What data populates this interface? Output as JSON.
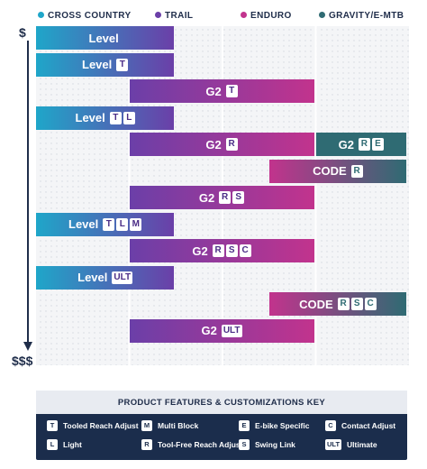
{
  "chart_data": {
    "type": "bar",
    "subtype": "range-gantt",
    "title": "",
    "x_categories": [
      {
        "name": "CROSS COUNTRY",
        "color": "#1fa6c9"
      },
      {
        "name": "TRAIL",
        "color": "#6b3fa8"
      },
      {
        "name": "ENDURO",
        "color": "#c2338d"
      },
      {
        "name": "GRAVITY/E-MTB",
        "color": "#2f6b73"
      }
    ],
    "y_axis": {
      "top_label": "$",
      "bottom_label": "$$$",
      "direction": "increasing price downward"
    },
    "grid": true,
    "bars": [
      {
        "name": "Level",
        "badges": [],
        "start": 0,
        "end": 1.5,
        "row": 0,
        "gradient": [
          "#1fa6c9",
          "#6b3fa8"
        ]
      },
      {
        "name": "Level",
        "badges": [
          "T"
        ],
        "start": 0,
        "end": 1.5,
        "row": 1,
        "gradient": [
          "#1fa6c9",
          "#6b3fa8"
        ]
      },
      {
        "name": "G2",
        "badges": [
          "T"
        ],
        "start": 1,
        "end": 3,
        "row": 2,
        "gradient": [
          "#6b3fa8",
          "#c2338d"
        ]
      },
      {
        "name": "Level",
        "badges": [
          "T",
          "L"
        ],
        "start": 0,
        "end": 1.5,
        "row": 3,
        "gradient": [
          "#1fa6c9",
          "#6b3fa8"
        ]
      },
      {
        "name": "G2",
        "badges": [
          "R"
        ],
        "start": 1,
        "end": 3,
        "row": 4,
        "gradient": [
          "#6b3fa8",
          "#c2338d"
        ]
      },
      {
        "name": "G2",
        "badges": [
          "R",
          "E"
        ],
        "start": 3,
        "end": 4,
        "row": 4,
        "gradient": [
          "#2f6b73",
          "#2f6b73"
        ]
      },
      {
        "name": "CODE",
        "badges": [
          "R"
        ],
        "start": 2.5,
        "end": 4,
        "row": 5,
        "gradient": [
          "#c2338d",
          "#2f6b73"
        ]
      },
      {
        "name": "G2",
        "badges": [
          "R",
          "S"
        ],
        "start": 1,
        "end": 3,
        "row": 6,
        "gradient": [
          "#6b3fa8",
          "#c2338d"
        ]
      },
      {
        "name": "Level",
        "badges": [
          "T",
          "L",
          "M"
        ],
        "start": 0,
        "end": 1.5,
        "row": 7,
        "gradient": [
          "#1fa6c9",
          "#6b3fa8"
        ]
      },
      {
        "name": "G2",
        "badges": [
          "R",
          "S",
          "C"
        ],
        "start": 1,
        "end": 3,
        "row": 8,
        "gradient": [
          "#6b3fa8",
          "#c2338d"
        ]
      },
      {
        "name": "Level",
        "badges": [
          "ULT"
        ],
        "start": 0,
        "end": 1.5,
        "row": 9,
        "gradient": [
          "#1fa6c9",
          "#6b3fa8"
        ]
      },
      {
        "name": "CODE",
        "badges": [
          "R",
          "S",
          "C"
        ],
        "start": 2.5,
        "end": 4,
        "row": 10,
        "gradient": [
          "#c2338d",
          "#2f6b73"
        ]
      },
      {
        "name": "G2",
        "badges": [
          "ULT"
        ],
        "start": 1,
        "end": 3,
        "row": 11,
        "gradient": [
          "#6b3fa8",
          "#c2338d"
        ]
      }
    ]
  },
  "key": {
    "title": "PRODUCT FEATURES & CUSTOMIZATIONS KEY",
    "items": [
      {
        "code": "T",
        "label": "Tooled Reach Adjust"
      },
      {
        "code": "M",
        "label": "Multi Block"
      },
      {
        "code": "E",
        "label": "E-bike Specific"
      },
      {
        "code": "C",
        "label": "Contact Adjust"
      },
      {
        "code": "L",
        "label": "Light"
      },
      {
        "code": "R",
        "label": "Tool-Free Reach Adjust"
      },
      {
        "code": "S",
        "label": "Swing Link"
      },
      {
        "code": "ULT",
        "label": "Ultimate"
      }
    ]
  }
}
